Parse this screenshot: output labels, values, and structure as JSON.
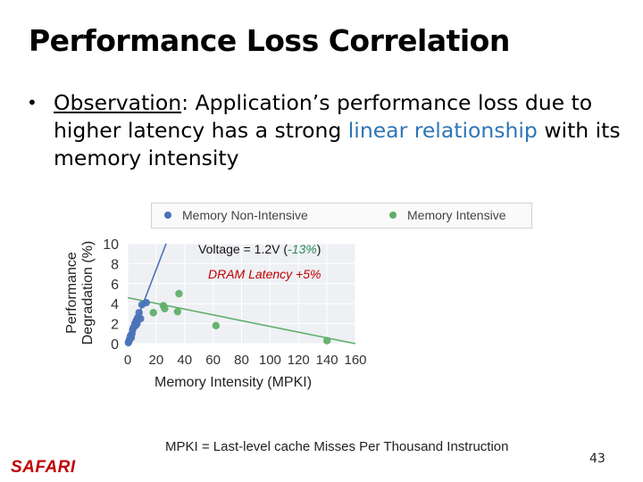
{
  "title": "Performance Loss Correlation",
  "bullet": {
    "label": "Observation",
    "text_part1": ": Application’s performance loss due to higher latency has a strong ",
    "highlight": "linear relationship",
    "text_part2": " with its memory intensity"
  },
  "colors": {
    "non_intensive": "#4a72b8",
    "intensive": "#5faf6a",
    "highlight": "#2e75b6",
    "red": "#c00000",
    "green": "#2e8b57"
  },
  "chart_data": {
    "type": "scatter",
    "xlabel": "Memory Intensity (MPKI)",
    "ylabel": "Performance Degradation (%)",
    "xlim": [
      0,
      160
    ],
    "ylim": [
      0,
      10
    ],
    "xticks": [
      "0",
      "20",
      "40",
      "60",
      "80",
      "100",
      "120",
      "140",
      "160"
    ],
    "yticks": [
      "0",
      "2",
      "4",
      "6",
      "8",
      "10"
    ],
    "legend": [
      "Memory Non-Intensive",
      "Memory Intensive"
    ],
    "legend_position": "top",
    "annotation_voltage": {
      "prefix": "Voltage = 1.2V (",
      "value": "-13%",
      "suffix": ")"
    },
    "annotation_latency": "DRAM Latency +5%",
    "series": [
      {
        "name": "Memory Non-Intensive",
        "points": [
          [
            0.5,
            0.1
          ],
          [
            1,
            0.3
          ],
          [
            1.5,
            0.5
          ],
          [
            2,
            0.8
          ],
          [
            3,
            1.0
          ],
          [
            3.5,
            1.4
          ],
          [
            4,
            1.6
          ],
          [
            5,
            2.0
          ],
          [
            6,
            2.3
          ],
          [
            7,
            2.6
          ],
          [
            8,
            3.1
          ],
          [
            10,
            3.9
          ],
          [
            13,
            4.1
          ],
          [
            2.5,
            0.6
          ],
          [
            5.5,
            1.8
          ],
          [
            6.5,
            2.0
          ],
          [
            9,
            2.5
          ]
        ],
        "fit": [
          [
            0,
            0
          ],
          [
            27,
            10
          ]
        ]
      },
      {
        "name": "Memory Intensive",
        "points": [
          [
            18,
            3.1
          ],
          [
            25,
            3.8
          ],
          [
            26,
            3.5
          ],
          [
            35,
            3.2
          ],
          [
            36,
            5.0
          ],
          [
            62,
            1.8
          ],
          [
            140,
            0.3
          ]
        ],
        "fit": [
          [
            0,
            4.6
          ],
          [
            160,
            0
          ]
        ]
      }
    ]
  },
  "footnote": "MPKI = Last-level cache Misses Per Thousand Instruction",
  "logo": "SAFARI",
  "page_number": "43"
}
